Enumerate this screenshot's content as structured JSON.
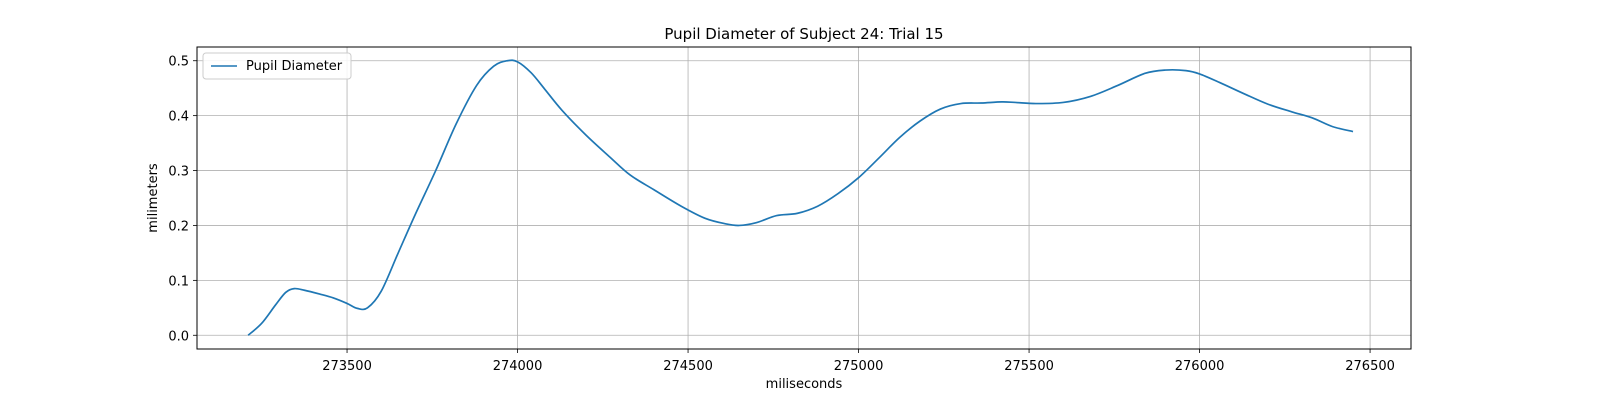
{
  "chart_data": {
    "type": "line",
    "title": "Pupil Diameter of Subject 24: Trial 15",
    "xlabel": "miliseconds",
    "ylabel": "milimeters",
    "xlim": [
      273060,
      276620
    ],
    "ylim": [
      -0.025,
      0.525
    ],
    "xticks": [
      273500,
      274000,
      274500,
      275000,
      275500,
      276000,
      276500
    ],
    "yticks": [
      0.0,
      0.1,
      0.2,
      0.3,
      0.4,
      0.5
    ],
    "xtick_labels": [
      "273500",
      "274000",
      "274500",
      "275000",
      "275500",
      "276000",
      "276500"
    ],
    "ytick_labels": [
      "0.0",
      "0.1",
      "0.2",
      "0.3",
      "0.4",
      "0.5"
    ],
    "grid": true,
    "legend_position": "top-left",
    "series": [
      {
        "name": "Pupil Diameter",
        "color": "#1f77b4",
        "x": [
          273210,
          273250,
          273290,
          273320,
          273345,
          273375,
          273420,
          273460,
          273500,
          273530,
          273560,
          273600,
          273650,
          273700,
          273760,
          273820,
          273880,
          273930,
          273970,
          274000,
          274040,
          274080,
          274130,
          274200,
          274270,
          274330,
          274400,
          274480,
          274550,
          274610,
          274650,
          274700,
          274760,
          274820,
          274880,
          274940,
          275000,
          275060,
          275120,
          275180,
          275240,
          275300,
          275360,
          275420,
          275460,
          275520,
          275600,
          275680,
          275760,
          275840,
          275900,
          275960,
          276000,
          276060,
          276130,
          276200,
          276270,
          276330,
          276390,
          276450
        ],
        "y": [
          0.0,
          0.022,
          0.055,
          0.078,
          0.085,
          0.082,
          0.075,
          0.068,
          0.058,
          0.049,
          0.05,
          0.08,
          0.15,
          0.22,
          0.3,
          0.385,
          0.455,
          0.49,
          0.5,
          0.498,
          0.478,
          0.448,
          0.41,
          0.365,
          0.325,
          0.292,
          0.265,
          0.235,
          0.213,
          0.203,
          0.2,
          0.205,
          0.218,
          0.222,
          0.235,
          0.258,
          0.287,
          0.323,
          0.36,
          0.39,
          0.412,
          0.422,
          0.423,
          0.425,
          0.424,
          0.422,
          0.424,
          0.435,
          0.455,
          0.477,
          0.483,
          0.482,
          0.476,
          0.46,
          0.44,
          0.421,
          0.407,
          0.396,
          0.38,
          0.371
        ]
      }
    ]
  }
}
